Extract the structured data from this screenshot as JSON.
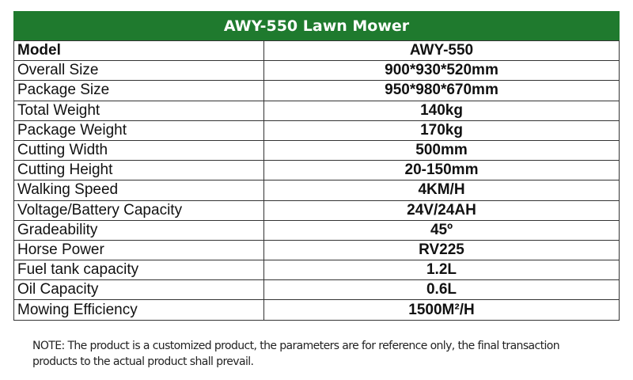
{
  "title": "AWY-550 Lawn Mower",
  "rows": [
    {
      "label": "Model",
      "value": "AWY-550"
    },
    {
      "label": "Overall Size",
      "value": "900*930*520mm"
    },
    {
      "label": "Package Size",
      "value": "950*980*670mm"
    },
    {
      "label": "Total Weight",
      "value": "140kg"
    },
    {
      "label": "Package Weight",
      "value": "170kg"
    },
    {
      "label": "Cutting Width",
      "value": "500mm"
    },
    {
      "label": "Cutting Height",
      "value": "20-150mm"
    },
    {
      "label": "Walking Speed",
      "value": "4KM/H"
    },
    {
      "label": "Voltage/Battery Capacity",
      "value": "24V/24AH"
    },
    {
      "label": "Gradeability",
      "value": "45º"
    },
    {
      "label": "Horse Power",
      "value": "RV225"
    },
    {
      "label": "Fuel tank capacity",
      "value": "1.2L"
    },
    {
      "label": "Oil Capacity",
      "value": "0.6L"
    },
    {
      "label": "Mowing Efficiency",
      "value": "1500M²/H"
    }
  ],
  "note": "NOTE: The product is a customized product, the parameters are for reference only, the final transaction products to the actual product shall prevail.",
  "colors": {
    "header_bg": "#1f7a2e",
    "header_text": "#ffffff"
  }
}
